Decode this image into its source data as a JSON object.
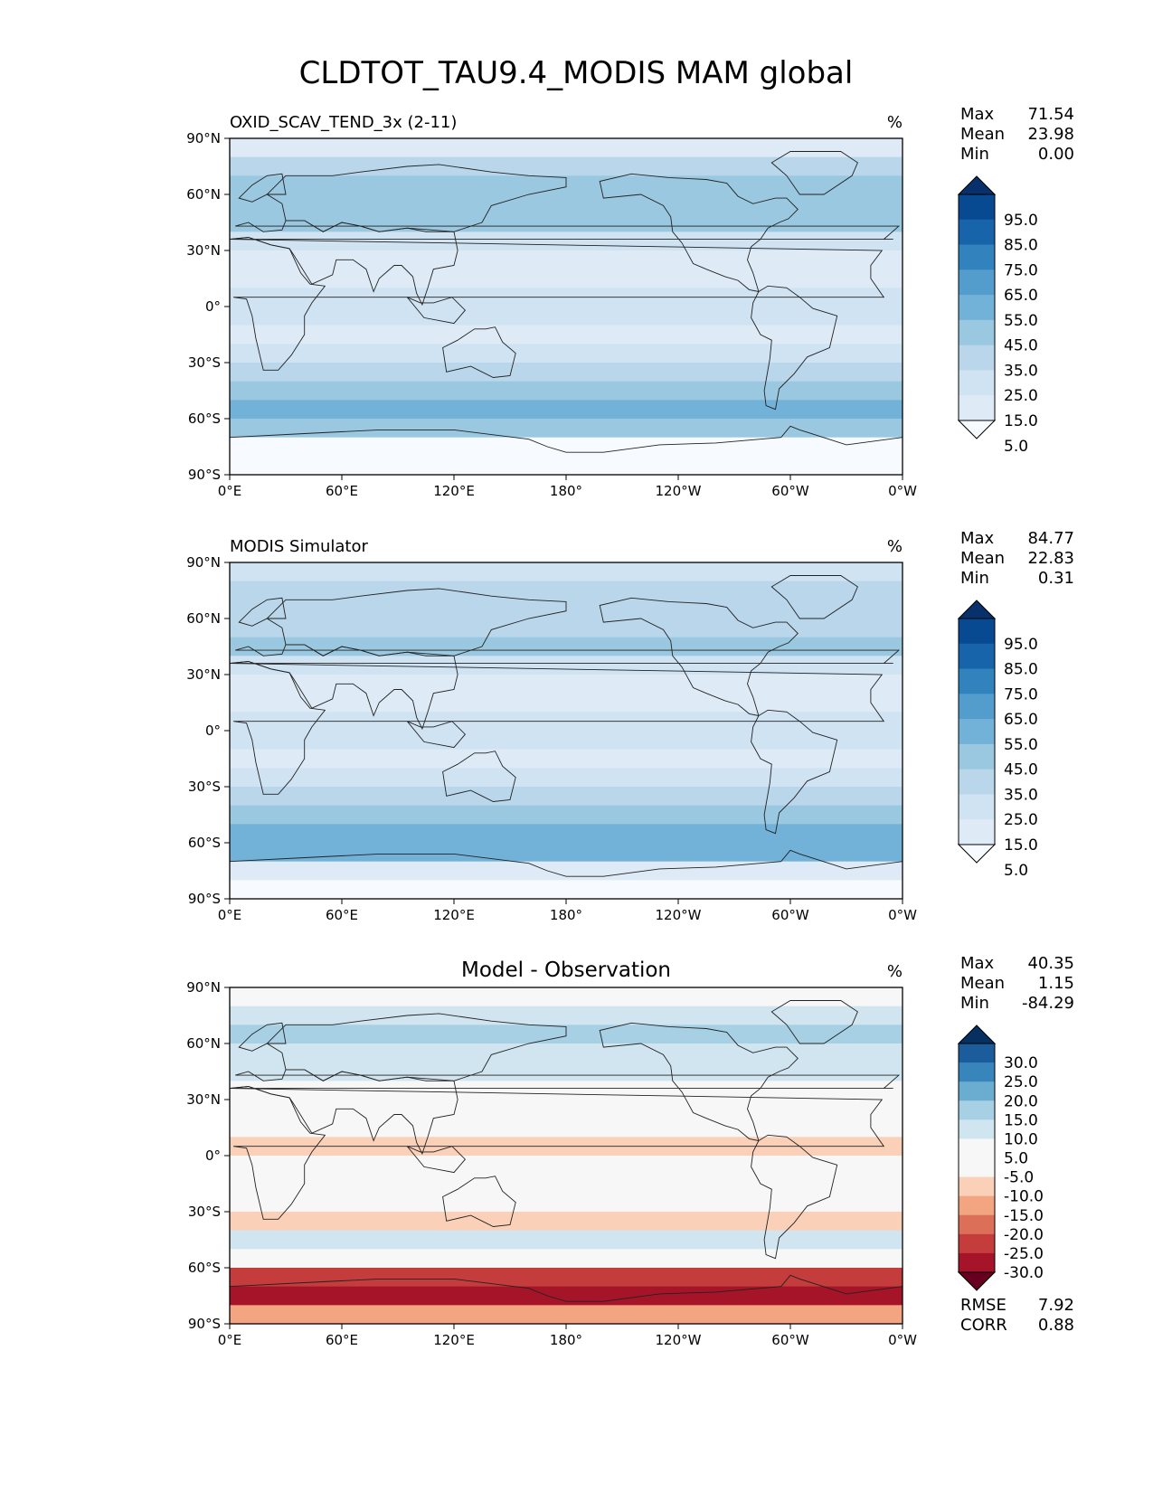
{
  "figure": {
    "title": "CLDTOT_TAU9.4_MODIS MAM global"
  },
  "axes": {
    "lat_ticks": [
      "90°N",
      "60°N",
      "30°N",
      "0°",
      "30°S",
      "60°S",
      "90°S"
    ],
    "lon_ticks": [
      "0°E",
      "60°E",
      "120°E",
      "180°",
      "120°W",
      "60°W",
      "0°W"
    ]
  },
  "colors": {
    "blues": [
      "#f7fbff",
      "#deebf7",
      "#d0e3f3",
      "#bad6eb",
      "#9ac8e0",
      "#73b2d8",
      "#529dcc",
      "#3282be",
      "#1764ab",
      "#084a91",
      "#08306b"
    ],
    "diverging": [
      "#67001f",
      "#a51429",
      "#c43c3c",
      "#dc6f58",
      "#f3a481",
      "#fbd0b9",
      "#f7f7f7",
      "#f7f7f7",
      "#d1e5f0",
      "#a7d0e4",
      "#6bacd1",
      "#3885bc",
      "#1c5c9c",
      "#053061"
    ],
    "land_outline": "#222222",
    "frame": "#000000"
  },
  "panels": [
    {
      "id": "test",
      "title": "OXID_SCAV_TEND_3x (2-11)",
      "units": "%",
      "stats": [
        {
          "label": "Max",
          "value": "71.54"
        },
        {
          "label": "Mean",
          "value": "23.98"
        },
        {
          "label": "Min",
          "value": "0.00"
        }
      ],
      "colorbar_labels": [
        "95.0",
        "85.0",
        "75.0",
        "65.0",
        "55.0",
        "45.0",
        "35.0",
        "25.0",
        "15.0",
        "5.0"
      ],
      "lat_band_levels": [
        {
          "lat": 85,
          "level": 1
        },
        {
          "lat": 75,
          "level": 3
        },
        {
          "lat": 65,
          "level": 4
        },
        {
          "lat": 55,
          "level": 4
        },
        {
          "lat": 45,
          "level": 4
        },
        {
          "lat": 35,
          "level": 2
        },
        {
          "lat": 25,
          "level": 1
        },
        {
          "lat": 15,
          "level": 1
        },
        {
          "lat": 5,
          "level": 2
        },
        {
          "lat": -5,
          "level": 2
        },
        {
          "lat": -15,
          "level": 1
        },
        {
          "lat": -25,
          "level": 2
        },
        {
          "lat": -35,
          "level": 3
        },
        {
          "lat": -45,
          "level": 4
        },
        {
          "lat": -55,
          "level": 5
        },
        {
          "lat": -65,
          "level": 4
        },
        {
          "lat": -75,
          "level": 0
        },
        {
          "lat": -85,
          "level": 0
        }
      ]
    },
    {
      "id": "reference",
      "title": "MODIS Simulator",
      "units": "%",
      "stats": [
        {
          "label": "Max",
          "value": "84.77"
        },
        {
          "label": "Mean",
          "value": "22.83"
        },
        {
          "label": "Min",
          "value": "0.31"
        }
      ],
      "colorbar_labels": [
        "95.0",
        "85.0",
        "75.0",
        "65.0",
        "55.0",
        "45.0",
        "35.0",
        "25.0",
        "15.0",
        "5.0"
      ],
      "lat_band_levels": [
        {
          "lat": 85,
          "level": 2
        },
        {
          "lat": 75,
          "level": 3
        },
        {
          "lat": 65,
          "level": 3
        },
        {
          "lat": 55,
          "level": 3
        },
        {
          "lat": 45,
          "level": 4
        },
        {
          "lat": 35,
          "level": 2
        },
        {
          "lat": 25,
          "level": 1
        },
        {
          "lat": 15,
          "level": 1
        },
        {
          "lat": 5,
          "level": 2
        },
        {
          "lat": -5,
          "level": 2
        },
        {
          "lat": -15,
          "level": 1
        },
        {
          "lat": -25,
          "level": 2
        },
        {
          "lat": -35,
          "level": 3
        },
        {
          "lat": -45,
          "level": 4
        },
        {
          "lat": -55,
          "level": 5
        },
        {
          "lat": -65,
          "level": 5
        },
        {
          "lat": -75,
          "level": 1
        },
        {
          "lat": -85,
          "level": 0
        }
      ]
    },
    {
      "id": "difference",
      "title": "Model - Observation",
      "units": "%",
      "stats": [
        {
          "label": "Max",
          "value": "40.35"
        },
        {
          "label": "Mean",
          "value": "1.15"
        },
        {
          "label": "Min",
          "value": "-84.29"
        }
      ],
      "colorbar_labels": [
        "30.0",
        "25.0",
        "20.0",
        "15.0",
        "10.0",
        "5.0",
        "-5.0",
        "-10.0",
        "-15.0",
        "-20.0",
        "-25.0",
        "-30.0"
      ],
      "extra_stats": [
        {
          "label": "RMSE",
          "value": "7.92"
        },
        {
          "label": "CORR",
          "value": "0.88"
        }
      ],
      "lat_band_levels": [
        {
          "lat": 85,
          "level": 6
        },
        {
          "lat": 75,
          "level": 8
        },
        {
          "lat": 65,
          "level": 9
        },
        {
          "lat": 55,
          "level": 8
        },
        {
          "lat": 45,
          "level": 8
        },
        {
          "lat": 35,
          "level": 7
        },
        {
          "lat": 25,
          "level": 6
        },
        {
          "lat": 15,
          "level": 7
        },
        {
          "lat": 5,
          "level": 5
        },
        {
          "lat": -5,
          "level": 7
        },
        {
          "lat": -15,
          "level": 6
        },
        {
          "lat": -25,
          "level": 6
        },
        {
          "lat": -35,
          "level": 5
        },
        {
          "lat": -45,
          "level": 8
        },
        {
          "lat": -55,
          "level": 7
        },
        {
          "lat": -65,
          "level": 2
        },
        {
          "lat": -75,
          "level": 1
        },
        {
          "lat": -85,
          "level": 4
        }
      ]
    }
  ]
}
